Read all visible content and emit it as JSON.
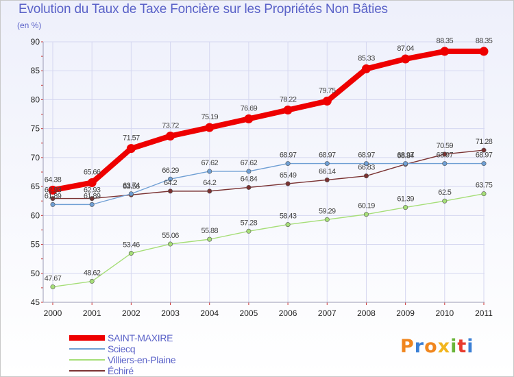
{
  "header": {
    "title": "Evolution du Taux de Taxe Foncière sur les Propriétés Non Bâties",
    "subtitle": "(en %)"
  },
  "logo": {
    "text": "Proxiti",
    "colors": [
      "#f0861e",
      "#3a7fd5",
      "#f0861e",
      "#f2b51e",
      "#6ab53a",
      "#e83b2e",
      "#3a7fd5"
    ]
  },
  "colors": {
    "grid": "#d5d7f0",
    "axis_text": "#222222",
    "label_text": "#444444",
    "title": "#5a62c8"
  },
  "chart_data": {
    "type": "line",
    "title": "Evolution du Taux de Taxe Foncière sur les Propriétés Non Bâties",
    "ylabel": "(en %)",
    "xlabel": "",
    "x": [
      "2000",
      "2001",
      "2002",
      "2003",
      "2004",
      "2005",
      "2006",
      "2007",
      "2008",
      "2009",
      "2010",
      "2011"
    ],
    "ylim": [
      45,
      90
    ],
    "yticks": [
      45,
      50,
      55,
      60,
      65,
      70,
      75,
      80,
      85,
      90
    ],
    "grid": true,
    "legend": "bottom-left",
    "series": [
      {
        "name": "SAINT-MAXIRE",
        "color": "#ee0000",
        "values": [
          64.38,
          65.66,
          71.57,
          73.72,
          75.19,
          76.69,
          78.22,
          79.75,
          85.33,
          87.04,
          88.35,
          88.35
        ],
        "labels": [
          "64.38",
          "65.66",
          "71.57",
          "73.72",
          "75.19",
          "76.69",
          "78.22",
          "79.75",
          "85.33",
          "87.04",
          "88.35",
          "88.35"
        ]
      },
      {
        "name": "Sciecq",
        "color": "#6f9fd4",
        "values": [
          61.89,
          61.89,
          63.74,
          66.29,
          67.62,
          67.62,
          68.97,
          68.97,
          68.97,
          68.97,
          68.97,
          68.97
        ],
        "labels": [
          "61.89",
          "61.89",
          "63.74",
          "66.29",
          "67.62",
          "67.62",
          "68.97",
          "68.97",
          "68.97",
          "68.97",
          "68.97",
          "68.97"
        ]
      },
      {
        "name": "Villiers-en-Plaine",
        "color": "#a6de78",
        "values": [
          47.67,
          48.62,
          53.46,
          55.06,
          55.88,
          57.28,
          58.43,
          59.29,
          60.19,
          61.39,
          62.5,
          63.75
        ],
        "labels": [
          "47.67",
          "48.62",
          "53.46",
          "55.06",
          "55.88",
          "57.28",
          "58.43",
          "59.29",
          "60.19",
          "61.39",
          "62.5",
          "63.75"
        ]
      },
      {
        "name": "Échiré",
        "color": "#7a3232",
        "values": [
          62.93,
          62.93,
          63.56,
          64.2,
          64.2,
          64.84,
          65.49,
          66.14,
          66.83,
          68.84,
          70.59,
          71.28
        ],
        "labels": [
          "62.93",
          "62.93",
          "63.56",
          "64.2",
          "64.2",
          "64.84",
          "65.49",
          "66.14",
          "66.83",
          "68.84",
          "70.59",
          "71.28"
        ]
      }
    ]
  }
}
